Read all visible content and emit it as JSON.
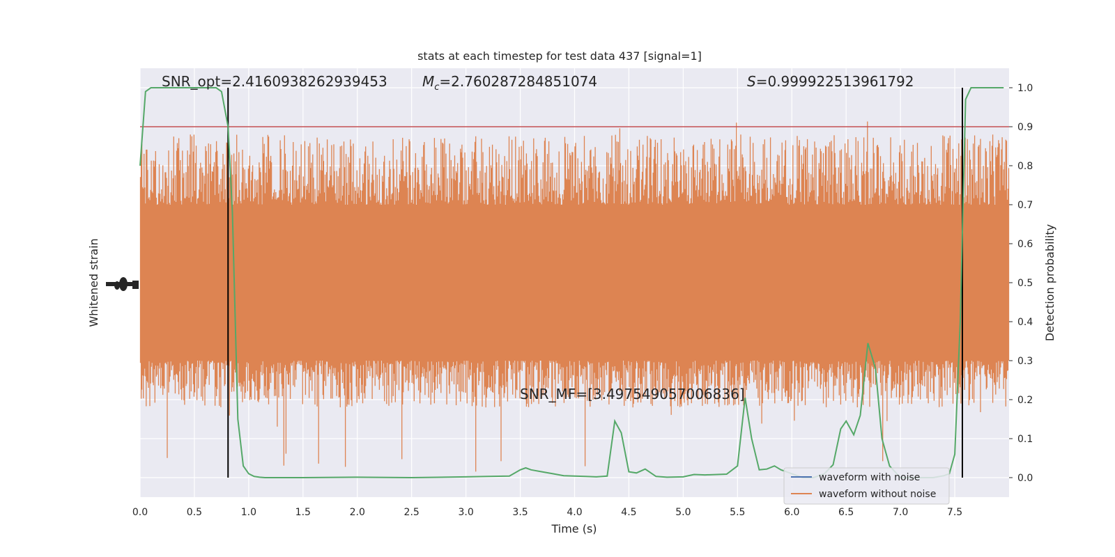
{
  "chart_data": {
    "type": "line",
    "title": "stats at each timestep for test data 437 [signal=1]",
    "xlabel": "Time (s)",
    "ylabel_left": "Whitened strain",
    "ylabel_right": "Detection probability",
    "xlim": [
      0.0,
      8.0
    ],
    "ylim_right": [
      -0.05,
      1.05
    ],
    "x_ticks": [
      "0.0",
      "0.5",
      "1.0",
      "1.5",
      "2.0",
      "2.5",
      "3.0",
      "3.5",
      "4.0",
      "4.5",
      "5.0",
      "5.5",
      "6.0",
      "6.5",
      "7.0",
      "7.5"
    ],
    "y_right_ticks": [
      "0.0",
      "0.1",
      "0.2",
      "0.3",
      "0.4",
      "0.5",
      "0.6",
      "0.7",
      "0.8",
      "0.9",
      "1.0"
    ],
    "grid": true,
    "legend_position": "lower-right",
    "annotations": {
      "snr_opt": "SNR_opt=2.4160938262939453",
      "mc_symbol": "M",
      "mc_subscript": "c",
      "mc_value": "=2.760287284851074",
      "s_symbol": "S",
      "s_value": "=0.999922513961792",
      "snr_mf": "SNR_MF=[3.497549057006836]"
    },
    "threshold": {
      "value": 0.9,
      "color": "#c44e52"
    },
    "vertical_lines_x": [
      0.81,
      7.57
    ],
    "series": [
      {
        "name": "waveform with noise",
        "color": "#4c72b0"
      },
      {
        "name": "waveform without noise",
        "color": "#dd8452"
      }
    ],
    "strain_band": {
      "color": "#dd8452",
      "core_y_range": [
        0.3,
        0.7
      ],
      "spike_samples": 1200
    },
    "probability_series": {
      "color": "#55a868",
      "x": [
        0.0,
        0.05,
        0.1,
        0.15,
        0.2,
        0.3,
        0.4,
        0.5,
        0.6,
        0.7,
        0.75,
        0.81,
        0.85,
        0.9,
        0.95,
        1.0,
        1.05,
        1.1,
        1.15,
        1.2,
        1.5,
        2.0,
        2.5,
        3.0,
        3.2,
        3.4,
        3.5,
        3.55,
        3.6,
        3.7,
        3.8,
        3.9,
        4.0,
        4.1,
        4.2,
        4.3,
        4.37,
        4.43,
        4.5,
        4.57,
        4.65,
        4.75,
        4.85,
        5.0,
        5.1,
        5.2,
        5.4,
        5.5,
        5.57,
        5.63,
        5.7,
        5.77,
        5.84,
        5.9,
        5.95,
        6.0,
        6.1,
        6.2,
        6.3,
        6.38,
        6.45,
        6.5,
        6.57,
        6.63,
        6.7,
        6.77,
        6.83,
        6.9,
        7.0,
        7.1,
        7.2,
        7.3,
        7.4,
        7.45,
        7.5,
        7.55,
        7.6,
        7.65,
        7.7,
        7.8,
        7.95
      ],
      "y": [
        0.8,
        0.99,
        1.0,
        1.0,
        1.0,
        1.0,
        1.0,
        1.0,
        1.0,
        1.0,
        0.99,
        0.9,
        0.68,
        0.15,
        0.03,
        0.01,
        0.003,
        0.001,
        0.0,
        0.0,
        0.0,
        0.001,
        0.0,
        0.002,
        0.003,
        0.004,
        0.02,
        0.025,
        0.02,
        0.015,
        0.01,
        0.005,
        0.004,
        0.003,
        0.002,
        0.004,
        0.145,
        0.115,
        0.015,
        0.012,
        0.022,
        0.003,
        0.001,
        0.002,
        0.008,
        0.007,
        0.009,
        0.03,
        0.205,
        0.1,
        0.02,
        0.022,
        0.03,
        0.02,
        0.015,
        0.01,
        0.0,
        0.0,
        0.01,
        0.033,
        0.125,
        0.145,
        0.11,
        0.16,
        0.345,
        0.28,
        0.1,
        0.03,
        0.0,
        0.0,
        0.0,
        0.0,
        0.005,
        0.01,
        0.06,
        0.4,
        0.97,
        1.0,
        1.0,
        1.0,
        1.0
      ]
    }
  }
}
